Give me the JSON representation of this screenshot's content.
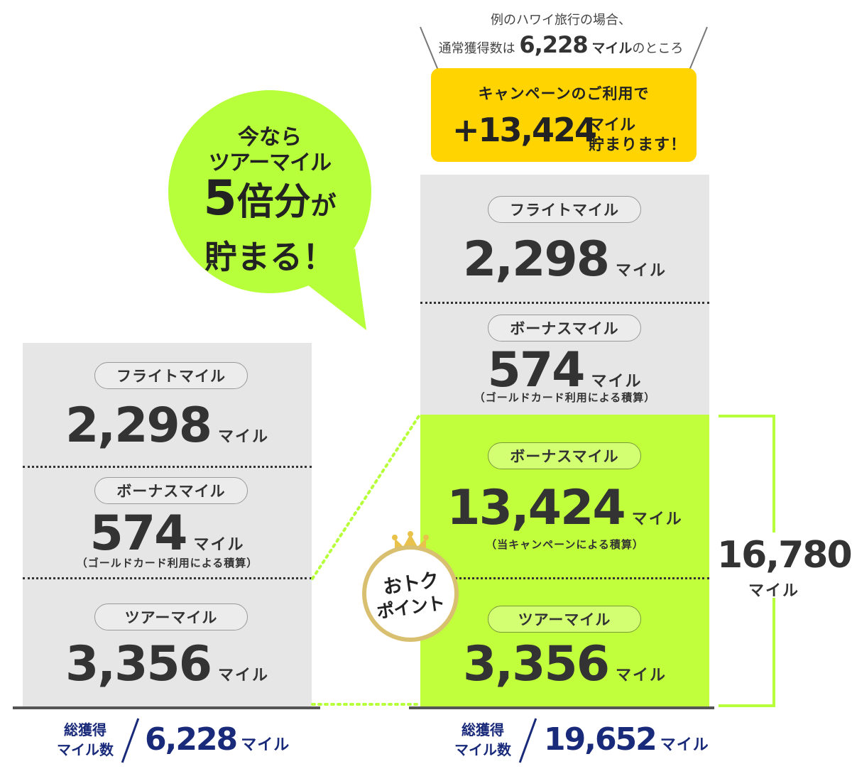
{
  "header": {
    "line1": "例のハワイ旅行の場合、",
    "line2_prefix": "通常獲得数は",
    "line2_number": "6,228",
    "line2_unit": "マイル",
    "line2_suffix": "のところ"
  },
  "campaign_box": {
    "line1": "キャンペーンのご利用で",
    "number": "+13,424",
    "unit": "マイル",
    "tail": "貯まります！",
    "color": "#ffd400"
  },
  "speech_bubble": {
    "line1": "今なら",
    "line2": "ツアーマイル",
    "line3_big": "5",
    "line3_rest": "倍分",
    "line3_small": "が",
    "line4": "貯まる！",
    "color": "#b7ff3a"
  },
  "badge": {
    "line1": "おトク",
    "line2": "ポイント",
    "crown_color": "#e8c24a",
    "ring_color": "#d8c070"
  },
  "chart_data": [
    {
      "type": "bar",
      "title": "",
      "segments": [
        {
          "label": "ツアーマイル",
          "value": 3356,
          "display": "3,356",
          "unit": "マイル",
          "note": ""
        },
        {
          "label": "ボーナスマイル",
          "value": 574,
          "display": "574",
          "unit": "マイル",
          "note": "（ゴールドカード利用による積算）"
        },
        {
          "label": "フライトマイル",
          "value": 2298,
          "display": "2,298",
          "unit": "マイル",
          "note": ""
        }
      ],
      "total_label_line1": "総獲得",
      "total_label_line2": "マイル数",
      "total_display": "6,228",
      "total_value": 6228,
      "total_unit": "マイル"
    },
    {
      "type": "bar",
      "title": "",
      "segments": [
        {
          "label": "ツアーマイル",
          "value": 3356,
          "display": "3,356",
          "unit": "マイル",
          "note": "",
          "highlight": true
        },
        {
          "label": "ボーナスマイル",
          "value": 13424,
          "display": "13,424",
          "unit": "マイル",
          "note": "（当キャンペーンによる積算）",
          "highlight": true
        },
        {
          "label": "ボーナスマイル",
          "value": 574,
          "display": "574",
          "unit": "マイル",
          "note": "（ゴールドカード利用による積算）"
        },
        {
          "label": "フライトマイル",
          "value": 2298,
          "display": "2,298",
          "unit": "マイル",
          "note": ""
        }
      ],
      "total_label_line1": "総獲得",
      "total_label_line2": "マイル数",
      "total_display": "19,652",
      "total_value": 19652,
      "total_unit": "マイル",
      "bracket_value": 16780,
      "bracket_display": "16,780",
      "bracket_unit": "マイル"
    }
  ],
  "colors": {
    "grey": "#e6e6e6",
    "green": "#c1ff3c",
    "navy": "#1a2a7a",
    "text": "#333333"
  }
}
